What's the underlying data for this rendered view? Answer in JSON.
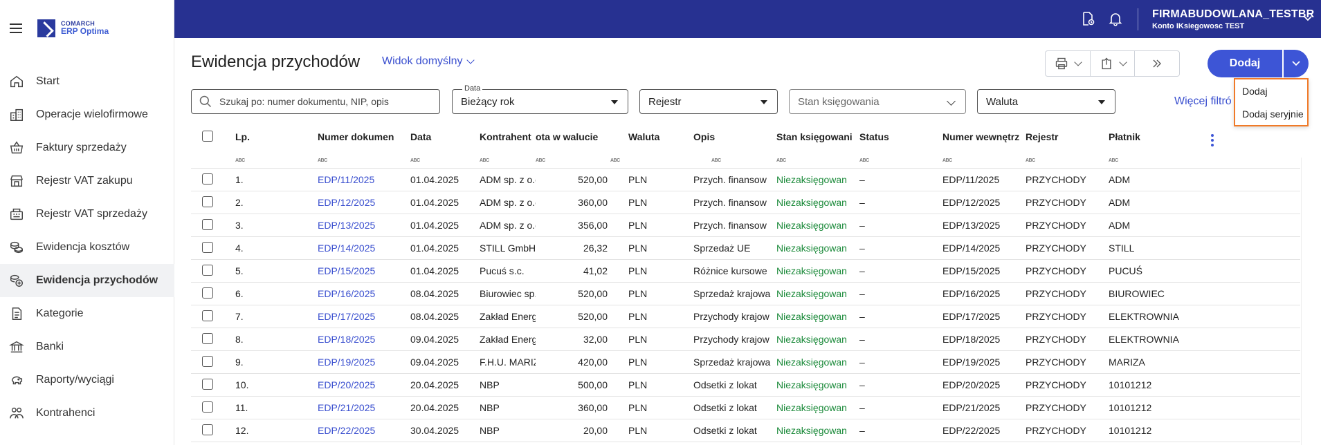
{
  "brand": {
    "top": "COMARCH",
    "bottom": "ERP Optima"
  },
  "sidebar": {
    "items": [
      {
        "label": "Start",
        "icon": "home-icon"
      },
      {
        "label": "Operacje wielofirmowe",
        "icon": "buildings-icon"
      },
      {
        "label": "Faktury sprzedaży",
        "icon": "basket-icon"
      },
      {
        "label": "Rejestr VAT zakupu",
        "icon": "shop-icon"
      },
      {
        "label": "Rejestr VAT sprzedaży",
        "icon": "register-icon"
      },
      {
        "label": "Ewidencja kosztów",
        "icon": "coins-icon"
      },
      {
        "label": "Ewidencja przychodów",
        "icon": "coins-plus-icon",
        "active": true
      },
      {
        "label": "Kategorie",
        "icon": "document-icon"
      },
      {
        "label": "Banki",
        "icon": "bank-icon"
      },
      {
        "label": "Raporty/wyciągi",
        "icon": "piggy-bank-icon"
      },
      {
        "label": "Kontrahenci",
        "icon": "people-icon"
      }
    ]
  },
  "topbar": {
    "company": "FIRMABUDOWLANA_TESTBR",
    "user": "Konto IKsiegowosc TEST"
  },
  "header": {
    "title": "Ewidencja przychodów",
    "view": "Widok domyślny",
    "add_label": "Dodaj"
  },
  "add_menu": {
    "items": [
      "Dodaj",
      "Dodaj seryjnie"
    ]
  },
  "filters": {
    "search_placeholder": "Szukaj po: numer dokumentu, NIP, opis",
    "date_label": "Data",
    "date_value": "Bieżący rok",
    "register": "Rejestr",
    "posting_state": "Stan księgowania",
    "currency": "Waluta",
    "more": "Więcej filtró"
  },
  "table": {
    "columns": [
      "Lp.",
      "Numer dokumen",
      "Data",
      "Kontrahent",
      "ota w walucie",
      "Waluta",
      "Opis",
      "Stan księgowani",
      "Status",
      "Numer wewnętrz",
      "Rejestr",
      "Płatnik"
    ],
    "filter_hint": "ABC",
    "rows": [
      [
        "1.",
        "EDP/11/2025",
        "01.04.2025",
        "ADM sp. z o.o.",
        "520,00",
        "PLN",
        "Przych. finansow",
        "Niezaksięgowan",
        "–",
        "EDP/11/2025",
        "PRZYCHODY",
        "ADM"
      ],
      [
        "2.",
        "EDP/12/2025",
        "01.04.2025",
        "ADM sp. z o.o.",
        "360,00",
        "PLN",
        "Przych. finansow",
        "Niezaksięgowan",
        "–",
        "EDP/12/2025",
        "PRZYCHODY",
        "ADM"
      ],
      [
        "3.",
        "EDP/13/2025",
        "01.04.2025",
        "ADM sp. z o.o.",
        "356,00",
        "PLN",
        "Przych. finansow",
        "Niezaksięgowan",
        "–",
        "EDP/13/2025",
        "PRZYCHODY",
        "ADM"
      ],
      [
        "4.",
        "EDP/14/2025",
        "01.04.2025",
        "STILL GmbH",
        "26,32",
        "PLN",
        "Sprzedaż UE",
        "Niezaksięgowan",
        "–",
        "EDP/14/2025",
        "PRZYCHODY",
        "STILL"
      ],
      [
        "5.",
        "EDP/15/2025",
        "01.04.2025",
        "Pucuś s.c.",
        "41,02",
        "PLN",
        "Różnice kursowe",
        "Niezaksięgowan",
        "–",
        "EDP/15/2025",
        "PRZYCHODY",
        "PUCUŚ"
      ],
      [
        "6.",
        "EDP/16/2025",
        "08.04.2025",
        "Biurowiec sp. z c",
        "520,00",
        "PLN",
        "Sprzedaż krajowa",
        "Niezaksięgowan",
        "–",
        "EDP/16/2025",
        "PRZYCHODY",
        "BIUROWIEC"
      ],
      [
        "7.",
        "EDP/17/2025",
        "08.04.2025",
        "Zakład Energetyc",
        "520,00",
        "PLN",
        "Przychody krajow",
        "Niezaksięgowan",
        "–",
        "EDP/17/2025",
        "PRZYCHODY",
        "ELEKTROWNIA"
      ],
      [
        "8.",
        "EDP/18/2025",
        "09.04.2025",
        "Zakład Energetyc",
        "32,00",
        "PLN",
        "Przychody krajow",
        "Niezaksięgowan",
        "–",
        "EDP/18/2025",
        "PRZYCHODY",
        "ELEKTROWNIA"
      ],
      [
        "9.",
        "EDP/19/2025",
        "09.04.2025",
        "F.H.U. MARIZA",
        "420,00",
        "PLN",
        "Sprzedaż krajowa",
        "Niezaksięgowan",
        "–",
        "EDP/19/2025",
        "PRZYCHODY",
        "MARIZA"
      ],
      [
        "10.",
        "EDP/20/2025",
        "20.04.2025",
        "NBP",
        "500,00",
        "PLN",
        "Odsetki z lokat",
        "Niezaksięgowan",
        "–",
        "EDP/20/2025",
        "PRZYCHODY",
        "10101212"
      ],
      [
        "11.",
        "EDP/21/2025",
        "20.04.2025",
        "NBP",
        "360,00",
        "PLN",
        "Odsetki z lokat",
        "Niezaksięgowan",
        "–",
        "EDP/21/2025",
        "PRZYCHODY",
        "10101212"
      ],
      [
        "12.",
        "EDP/22/2025",
        "30.04.2025",
        "NBP",
        "20,00",
        "PLN",
        "Odsetki z lokat",
        "Niezaksięgowan",
        "–",
        "EDP/22/2025",
        "PRZYCHODY",
        "10101212"
      ]
    ]
  },
  "colors": {
    "topbar": "#273191",
    "accent": "#3d55d6",
    "link": "#3a4fcf",
    "status_green": "#1b8a3a",
    "highlight": "#f07a28"
  }
}
